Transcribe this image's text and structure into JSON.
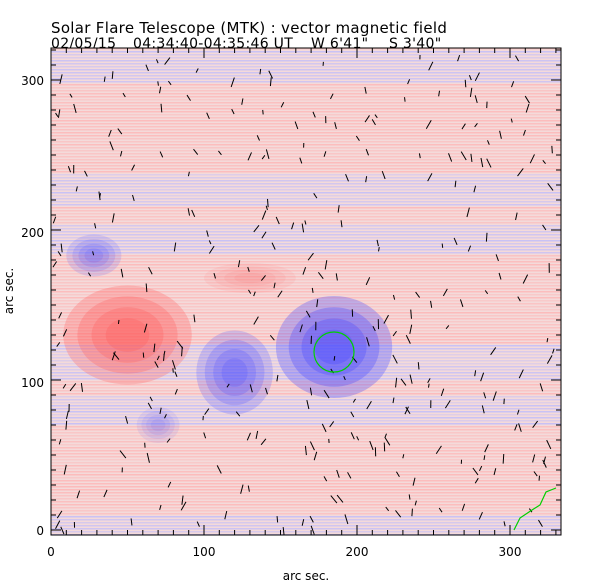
{
  "header": {
    "title": "Solar Flare Telescope (MTK) : vector magnetic field",
    "date": "02/05/15",
    "time_range": "04:34:40-04:35:46 UT",
    "position_w": "W 6'41\"",
    "position_s": "S 3'40\""
  },
  "chart_data": {
    "type": "heatmap",
    "title": "Solar Flare Telescope (MTK) : vector magnetic field",
    "xlabel": "arc sec.",
    "ylabel": "arc sec.",
    "xlim": [
      0,
      333
    ],
    "ylim": [
      0,
      321
    ],
    "xticks": [
      "0",
      "100",
      "200",
      "300"
    ],
    "yticks": [
      "0",
      "100",
      "200",
      "300"
    ],
    "colors": {
      "positive": "#ff5a5a",
      "negative": "#4646ff",
      "contour": "#00d000",
      "arrow": "#000000"
    },
    "regions": [
      {
        "polarity": "positive",
        "x": 50,
        "y": 130,
        "rx": 42,
        "ry": 33,
        "strength": 0.9
      },
      {
        "polarity": "negative",
        "x": 185,
        "y": 122,
        "rx": 38,
        "ry": 34,
        "strength": 1.0
      },
      {
        "polarity": "negative",
        "x": 120,
        "y": 105,
        "rx": 25,
        "ry": 28,
        "strength": 0.7
      },
      {
        "polarity": "negative",
        "x": 28,
        "y": 183,
        "rx": 18,
        "ry": 14,
        "strength": 0.5
      },
      {
        "polarity": "positive",
        "x": 130,
        "y": 168,
        "rx": 30,
        "ry": 10,
        "strength": 0.3
      },
      {
        "polarity": "negative",
        "x": 70,
        "y": 70,
        "rx": 14,
        "ry": 12,
        "strength": 0.3
      }
    ]
  }
}
